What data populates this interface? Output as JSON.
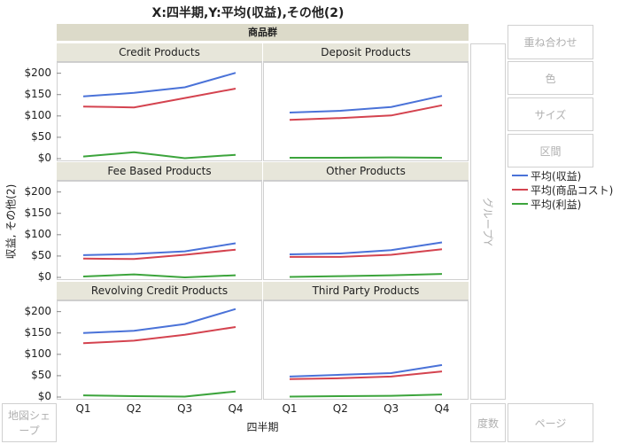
{
  "title": "X:四半期,Y:平均(収益),その他(2)",
  "group_label": "商品群",
  "y_axis_label": "収益, その他(2)",
  "x_axis_label": "四半期",
  "y_ticks": [
    "$200",
    "$150",
    "$100",
    "$50",
    "$0"
  ],
  "zones": {
    "overlay": "重ね合わせ",
    "color": "色",
    "size": "サイズ",
    "interval": "区間",
    "group_y": "グループY",
    "map_shape": "地図シェープ",
    "freq": "度数",
    "page": "ページ"
  },
  "legend": [
    {
      "label": "平均(収益)",
      "color": "#4a72d8"
    },
    {
      "label": "平均(商品コスト)",
      "color": "#d4434f"
    },
    {
      "label": "平均(利益)",
      "color": "#3ca43c"
    }
  ],
  "chart_data": {
    "type": "line",
    "categories": [
      "Q1",
      "Q2",
      "Q3",
      "Q4"
    ],
    "ylim": [
      0,
      220
    ],
    "panels": [
      {
        "name": "Credit Products",
        "series": [
          {
            "name": "平均(収益)",
            "values": [
              146,
              154,
              167,
              201
            ]
          },
          {
            "name": "平均(商品コスト)",
            "values": [
              122,
              120,
              142,
              164
            ]
          },
          {
            "name": "平均(利益)",
            "values": [
              5,
              15,
              1,
              9
            ]
          }
        ]
      },
      {
        "name": "Deposit Products",
        "series": [
          {
            "name": "平均(収益)",
            "values": [
              108,
              112,
              121,
              147
            ]
          },
          {
            "name": "平均(商品コスト)",
            "values": [
              91,
              95,
              101,
              125
            ]
          },
          {
            "name": "平均(利益)",
            "values": [
              2,
              2,
              3,
              2
            ]
          }
        ]
      },
      {
        "name": "Fee Based Products",
        "series": [
          {
            "name": "平均(収益)",
            "values": [
              52,
              55,
              61,
              80
            ]
          },
          {
            "name": "平均(商品コスト)",
            "values": [
              44,
              43,
              53,
              65
            ]
          },
          {
            "name": "平均(利益)",
            "values": [
              2,
              7,
              0,
              5
            ]
          }
        ]
      },
      {
        "name": "Other Products",
        "series": [
          {
            "name": "平均(収益)",
            "values": [
              54,
              56,
              64,
              82
            ]
          },
          {
            "name": "平均(商品コスト)",
            "values": [
              48,
              48,
              53,
              66
            ]
          },
          {
            "name": "平均(利益)",
            "values": [
              1,
              3,
              5,
              8
            ]
          }
        ]
      },
      {
        "name": "Revolving Credit Products",
        "series": [
          {
            "name": "平均(収益)",
            "values": [
              150,
              155,
              171,
              206
            ]
          },
          {
            "name": "平均(商品コスト)",
            "values": [
              126,
              132,
              146,
              164
            ]
          },
          {
            "name": "平均(利益)",
            "values": [
              4,
              2,
              1,
              13
            ]
          }
        ]
      },
      {
        "name": "Third Party Products",
        "series": [
          {
            "name": "平均(収益)",
            "values": [
              48,
              52,
              56,
              75
            ]
          },
          {
            "name": "平均(商品コスト)",
            "values": [
              42,
              44,
              48,
              60
            ]
          },
          {
            "name": "平均(利益)",
            "values": [
              1,
              2,
              3,
              6
            ]
          }
        ]
      }
    ]
  }
}
